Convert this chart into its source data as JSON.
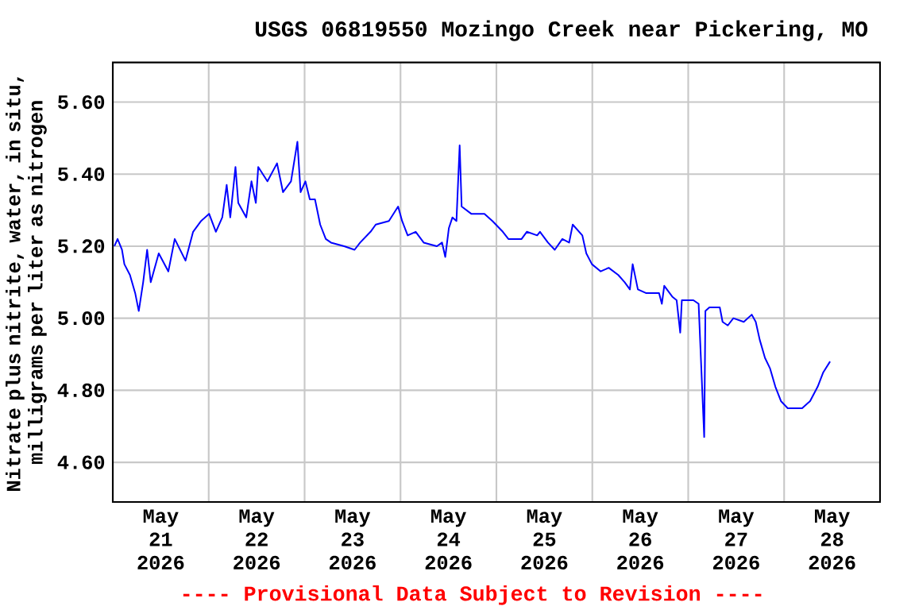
{
  "chart_data": {
    "type": "line",
    "title": "USGS 06819550 Mozingo Creek near Pickering, MO",
    "ylabel": "Nitrate plus nitrite, water, in situ, milligrams per liter as nitrogen",
    "annotations": [
      "---- Provisional Data Subject to Revision ----"
    ],
    "xlim": [
      "2026-05-21T00:00",
      "2026-05-29T00:00"
    ],
    "xticks": [
      {
        "value": "2026-05-22T00:00",
        "label": null
      },
      {
        "value": "2026-05-23T00:00",
        "label": null
      },
      {
        "value": "2026-05-24T00:00",
        "label": null
      },
      {
        "value": "2026-05-25T00:00",
        "label": null
      },
      {
        "value": "2026-05-26T00:00",
        "label": null
      },
      {
        "value": "2026-05-27T00:00",
        "label": null
      },
      {
        "value": "2026-05-28T00:00",
        "label": null
      },
      {
        "value": "2026-05-21T12:00",
        "label": "May 21 2026"
      },
      {
        "value": "2026-05-22T12:00",
        "label": "May 22 2026"
      },
      {
        "value": "2026-05-23T12:00",
        "label": "May 23 2026"
      },
      {
        "value": "2026-05-24T12:00",
        "label": "May 24 2026"
      },
      {
        "value": "2026-05-25T12:00",
        "label": "May 25 2026"
      },
      {
        "value": "2026-05-26T12:00",
        "label": "May 26 2026"
      },
      {
        "value": "2026-05-27T12:00",
        "label": "May 27 2026"
      },
      {
        "value": "2026-05-28T12:00",
        "label": "May 28 2026"
      }
    ],
    "ylim": [
      4.49,
      5.71
    ],
    "yticks": [
      {
        "value": 4.6,
        "label": "4.60"
      },
      {
        "value": 4.8,
        "label": "4.80"
      },
      {
        "value": 5.0,
        "label": "5.00"
      },
      {
        "value": 5.2,
        "label": "5.20"
      },
      {
        "value": 5.4,
        "label": "5.40"
      },
      {
        "value": 5.6,
        "label": "5.60"
      }
    ],
    "grid": true,
    "marker": "none",
    "line_style": "solid",
    "series": [
      {
        "color": "#0000ff",
        "x": [
          "2026-05-21T00:24",
          "2026-05-21T01:12",
          "2026-05-21T02:18",
          "2026-05-21T02:54",
          "2026-05-21T04:18",
          "2026-05-21T05:36",
          "2026-05-21T06:30",
          "2026-05-21T07:36",
          "2026-05-21T08:36",
          "2026-05-21T09:30",
          "2026-05-21T11:30",
          "2026-05-21T13:54",
          "2026-05-21T15:30",
          "2026-05-21T18:12",
          "2026-05-21T20:06",
          "2026-05-21T22:06",
          "2026-05-22T00:06",
          "2026-05-22T01:48",
          "2026-05-22T03:24",
          "2026-05-22T04:30",
          "2026-05-22T05:24",
          "2026-05-22T06:42",
          "2026-05-22T07:24",
          "2026-05-22T09:24",
          "2026-05-22T10:42",
          "2026-05-22T11:48",
          "2026-05-22T12:24",
          "2026-05-22T14:42",
          "2026-05-22T17:06",
          "2026-05-22T18:36",
          "2026-05-22T20:36",
          "2026-05-22T22:12",
          "2026-05-22T23:00",
          "2026-05-23T00:12",
          "2026-05-23T01:18",
          "2026-05-23T02:36",
          "2026-05-23T03:54",
          "2026-05-23T05:18",
          "2026-05-23T06:36",
          "2026-05-23T09:54",
          "2026-05-23T12:30",
          "2026-05-23T13:54",
          "2026-05-23T16:30",
          "2026-05-23T17:48",
          "2026-05-23T21:06",
          "2026-05-23T23:24",
          "2026-05-24T00:24",
          "2026-05-24T01:48",
          "2026-05-24T03:48",
          "2026-05-24T05:48",
          "2026-05-24T09:06",
          "2026-05-24T10:24",
          "2026-05-24T11:12",
          "2026-05-24T12:06",
          "2026-05-24T13:00",
          "2026-05-24T14:00",
          "2026-05-24T14:48",
          "2026-05-24T15:18",
          "2026-05-24T17:42",
          "2026-05-24T21:00",
          "2026-05-24T23:00",
          "2026-05-25T01:36",
          "2026-05-25T03:00",
          "2026-05-25T06:18",
          "2026-05-25T07:36",
          "2026-05-25T10:12",
          "2026-05-25T10:54",
          "2026-05-25T12:54",
          "2026-05-25T14:36",
          "2026-05-25T16:30",
          "2026-05-25T18:12",
          "2026-05-25T19:06",
          "2026-05-25T21:30",
          "2026-05-25T22:30",
          "2026-05-25T23:54",
          "2026-05-26T02:06",
          "2026-05-26T04:06",
          "2026-05-26T06:30",
          "2026-05-26T08:06",
          "2026-05-26T09:24",
          "2026-05-26T10:06",
          "2026-05-26T11:24",
          "2026-05-26T13:24",
          "2026-05-26T16:42",
          "2026-05-26T17:24",
          "2026-05-26T18:00",
          "2026-05-26T20:00",
          "2026-05-26T21:06",
          "2026-05-26T22:00",
          "2026-05-26T22:24",
          "2026-05-27T01:18",
          "2026-05-27T02:36",
          "2026-05-27T04:00",
          "2026-05-27T04:18",
          "2026-05-27T05:18",
          "2026-05-27T07:54",
          "2026-05-27T08:36",
          "2026-05-27T09:54",
          "2026-05-27T11:18",
          "2026-05-27T13:54",
          "2026-05-27T15:54",
          "2026-05-27T16:54",
          "2026-05-27T17:54",
          "2026-05-27T19:12",
          "2026-05-27T20:30",
          "2026-05-27T21:48",
          "2026-05-27T23:12",
          "2026-05-28T00:54",
          "2026-05-28T04:30",
          "2026-05-28T06:30",
          "2026-05-28T08:24",
          "2026-05-28T09:48",
          "2026-05-28T11:30"
        ],
        "values": [
          5.2,
          5.22,
          5.19,
          5.15,
          5.12,
          5.07,
          5.02,
          5.1,
          5.19,
          5.1,
          5.18,
          5.13,
          5.22,
          5.16,
          5.24,
          5.27,
          5.29,
          5.24,
          5.28,
          5.37,
          5.28,
          5.42,
          5.32,
          5.28,
          5.38,
          5.32,
          5.42,
          5.38,
          5.43,
          5.35,
          5.38,
          5.49,
          5.35,
          5.38,
          5.33,
          5.33,
          5.26,
          5.22,
          5.21,
          5.2,
          5.19,
          5.21,
          5.24,
          5.26,
          5.27,
          5.31,
          5.27,
          5.23,
          5.24,
          5.21,
          5.2,
          5.21,
          5.17,
          5.25,
          5.28,
          5.27,
          5.48,
          5.31,
          5.29,
          5.29,
          5.27,
          5.24,
          5.22,
          5.22,
          5.24,
          5.23,
          5.24,
          5.21,
          5.19,
          5.22,
          5.21,
          5.26,
          5.23,
          5.18,
          5.15,
          5.13,
          5.14,
          5.12,
          5.1,
          5.08,
          5.15,
          5.08,
          5.07,
          5.07,
          5.04,
          5.09,
          5.06,
          5.05,
          4.96,
          5.05,
          5.05,
          5.04,
          4.67,
          5.02,
          5.03,
          5.03,
          4.99,
          4.98,
          5.0,
          4.99,
          5.01,
          4.99,
          4.94,
          4.89,
          4.86,
          4.81,
          4.77,
          4.75,
          4.75,
          4.77,
          4.81,
          4.85,
          4.88
        ]
      }
    ]
  }
}
